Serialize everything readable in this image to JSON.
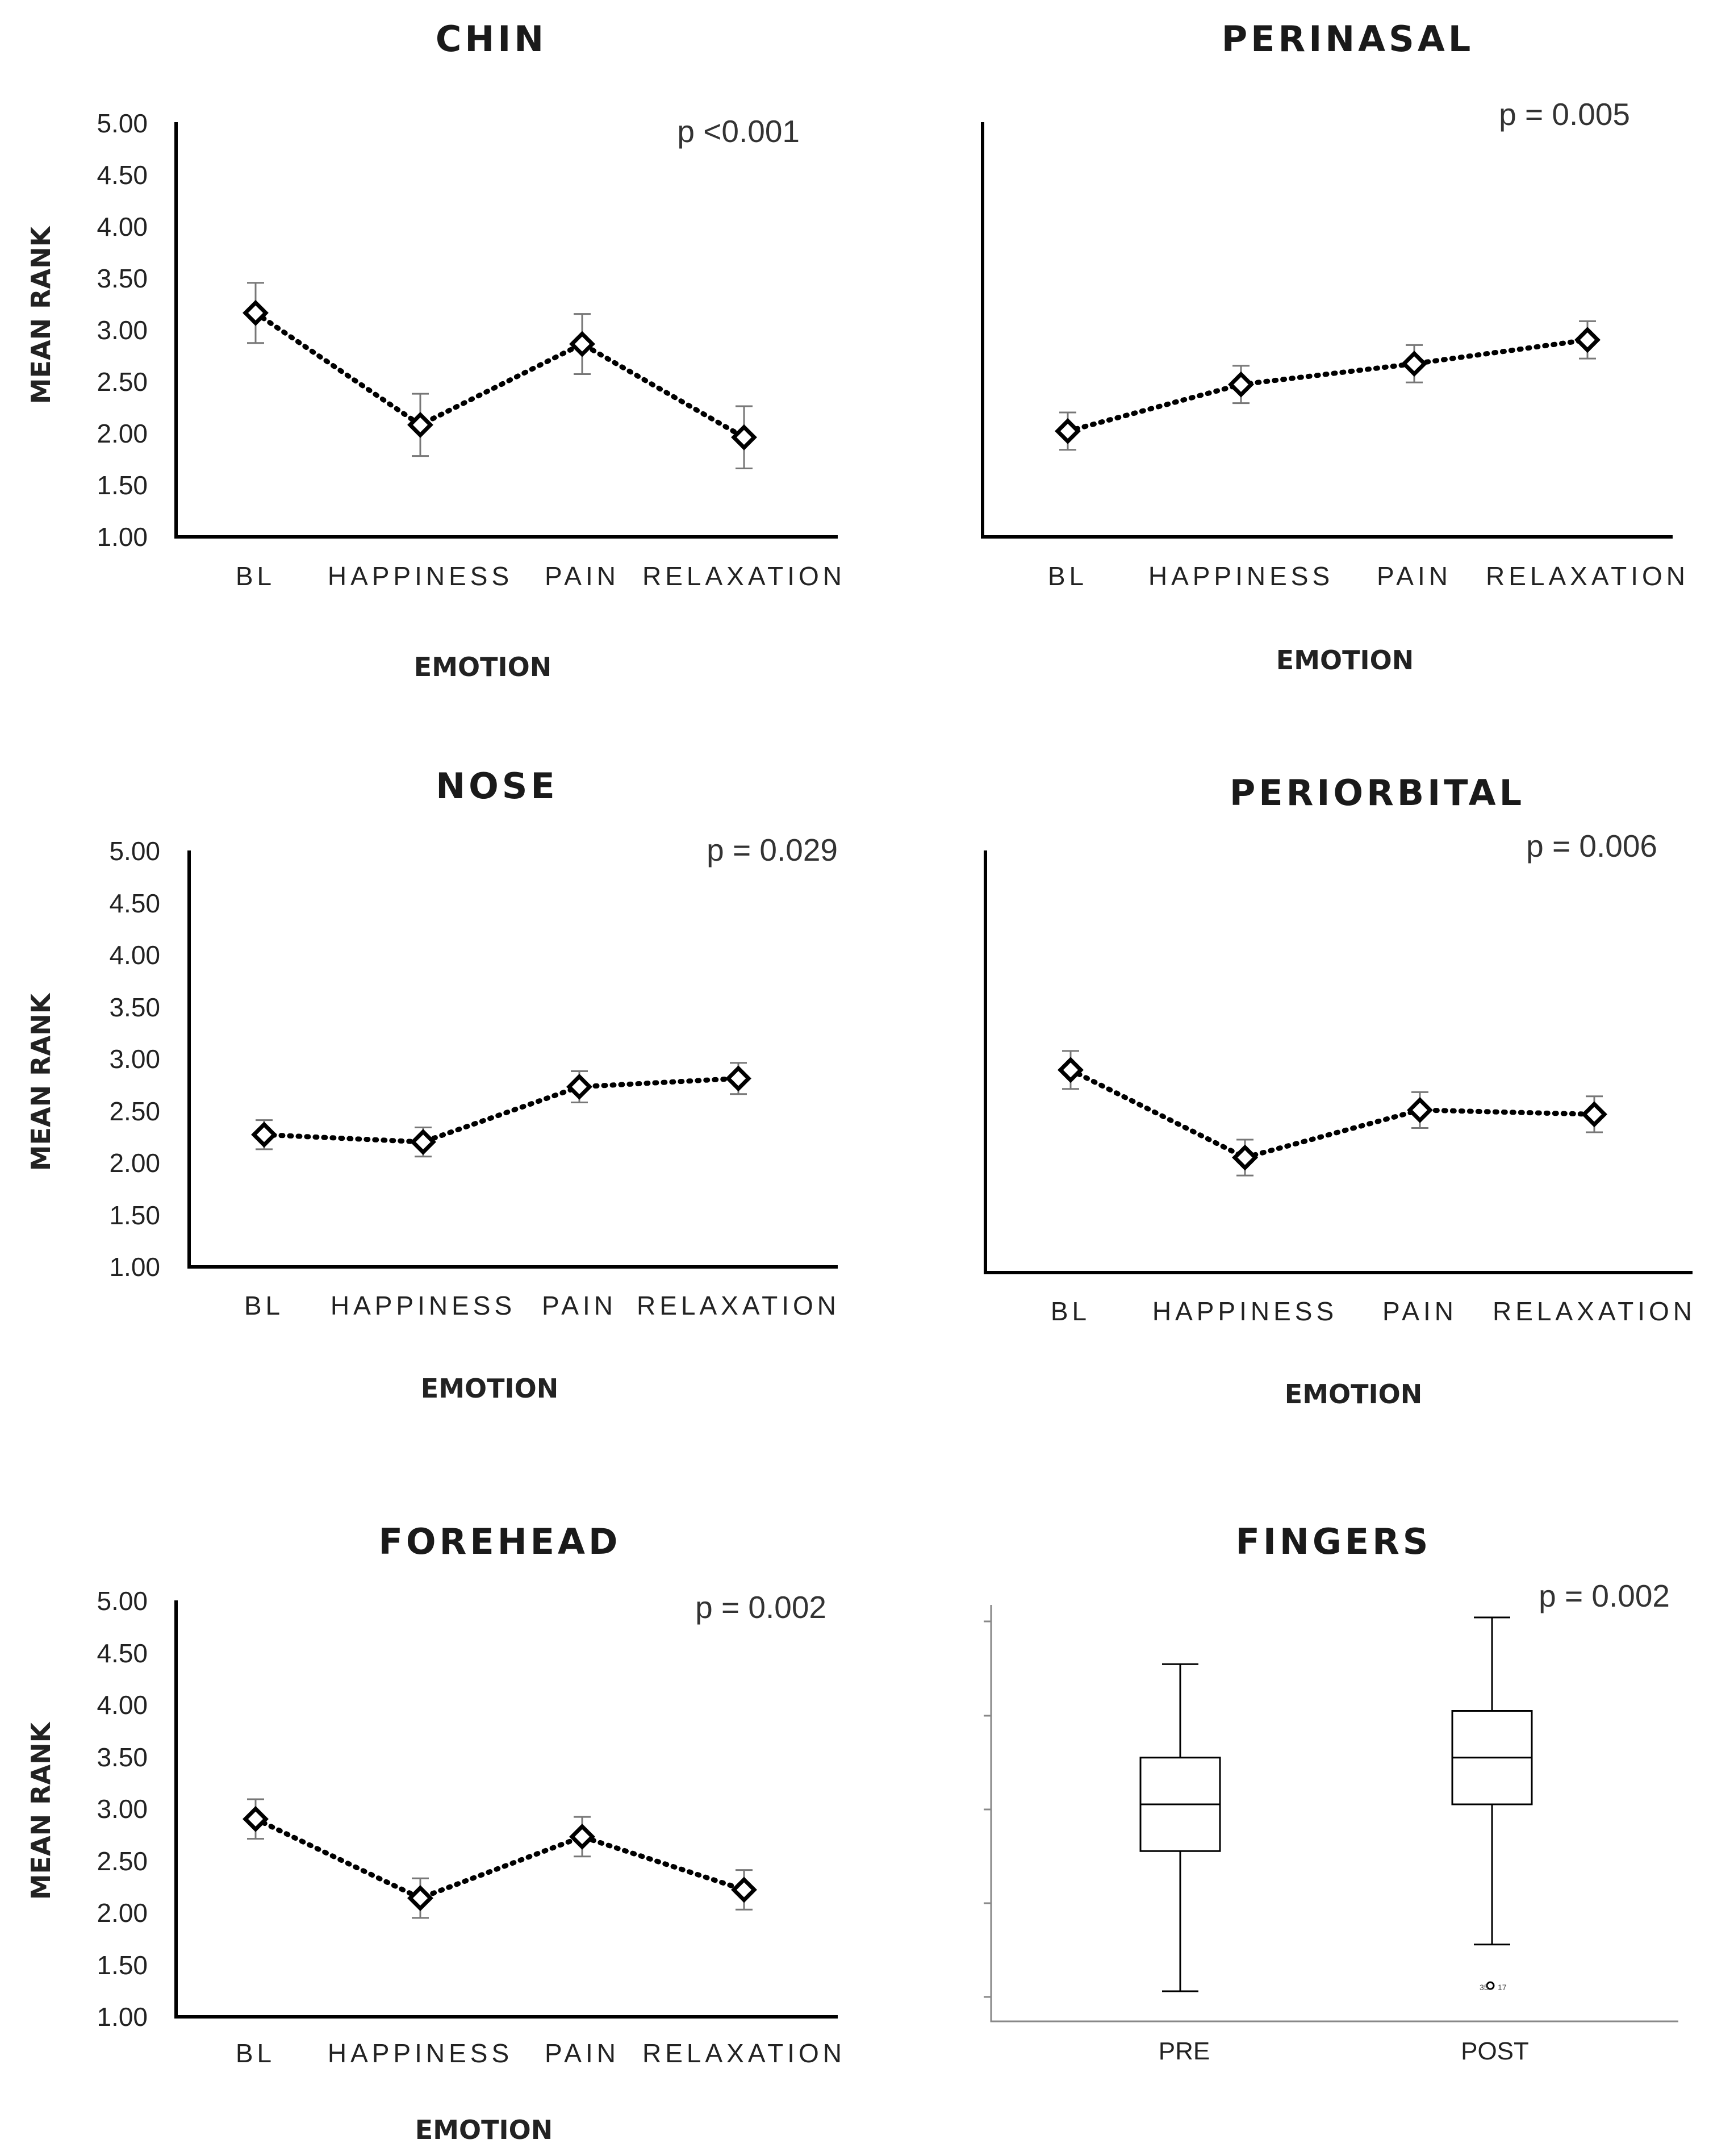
{
  "chart_data": [
    {
      "id": "chin",
      "type": "line",
      "title": "CHIN",
      "p_value": "p <0.001",
      "xlabel": "EMOTION",
      "ylabel": "MEAN RANK",
      "ylim": [
        1.0,
        5.0
      ],
      "yticks": [
        "1.00",
        "1.50",
        "2.00",
        "2.50",
        "3.00",
        "3.50",
        "4.00",
        "4.50",
        "5.00"
      ],
      "categories": [
        "BL",
        "HAPPINESS",
        "PAIN",
        "RELAXATION"
      ],
      "values": [
        3.16,
        2.08,
        2.86,
        1.96
      ],
      "errors": [
        0.29,
        0.3,
        0.29,
        0.3
      ]
    },
    {
      "id": "perinasal",
      "type": "line",
      "title": "PERINASAL",
      "p_value": "p = 0.005",
      "xlabel": "EMOTION",
      "ylabel": "",
      "ylim": [
        1.0,
        5.0
      ],
      "categories": [
        "BL",
        "HAPPINESS",
        "PAIN",
        "RELAXATION"
      ],
      "values": [
        2.02,
        2.47,
        2.67,
        2.9
      ],
      "errors": [
        0.18,
        0.18,
        0.18,
        0.18
      ]
    },
    {
      "id": "nose",
      "type": "line",
      "title": "NOSE",
      "p_value": "p = 0.029",
      "xlabel": "EMOTION",
      "ylabel": "MEAN RANK",
      "ylim": [
        1.0,
        5.0
      ],
      "yticks": [
        "1.00",
        "1.50",
        "2.00",
        "2.50",
        "3.00",
        "3.50",
        "4.00",
        "4.50",
        "5.00"
      ],
      "categories": [
        "BL",
        "HAPPINESS",
        "PAIN",
        "RELAXATION"
      ],
      "values": [
        2.27,
        2.2,
        2.73,
        2.81
      ],
      "errors": [
        0.14,
        0.14,
        0.15,
        0.15
      ]
    },
    {
      "id": "periorbital",
      "type": "line",
      "title": "PERIORBITAL",
      "p_value": "p = 0.006",
      "xlabel": "EMOTION",
      "ylabel": "",
      "ylim": [
        1.0,
        5.0
      ],
      "categories": [
        "BL",
        "HAPPINESS",
        "PAIN",
        "RELAXATION"
      ],
      "values": [
        2.92,
        2.09,
        2.54,
        2.5
      ],
      "errors": [
        0.18,
        0.17,
        0.17,
        0.17
      ]
    },
    {
      "id": "forehead",
      "type": "line",
      "title": "FOREHEAD",
      "p_value": "p = 0.002",
      "xlabel": "EMOTION",
      "ylabel": "MEAN RANK",
      "ylim": [
        1.0,
        5.0
      ],
      "yticks": [
        "1.00",
        "1.50",
        "2.00",
        "2.50",
        "3.00",
        "3.50",
        "4.00",
        "4.50",
        "5.00"
      ],
      "categories": [
        "BL",
        "HAPPINESS",
        "PAIN",
        "RELAXATION"
      ],
      "values": [
        2.9,
        2.14,
        2.73,
        2.22
      ],
      "errors": [
        0.19,
        0.19,
        0.19,
        0.19
      ]
    },
    {
      "id": "fingers",
      "type": "box",
      "title": "FINGERS",
      "p_value": "p = 0.002",
      "categories": [
        "PRE",
        "POST"
      ],
      "ylim": [
        0.9,
        5.2
      ],
      "boxes": [
        {
          "whisker_low": 1.0,
          "q1": 2.5,
          "median": 3.0,
          "q3": 3.5,
          "whisker_high": 4.5
        },
        {
          "whisker_low": 1.5,
          "q1": 3.0,
          "median": 3.5,
          "q3": 4.0,
          "whisker_high": 5.0
        }
      ],
      "outlier_value": 1.06,
      "outlier_labels": [
        "35",
        "17"
      ]
    }
  ]
}
